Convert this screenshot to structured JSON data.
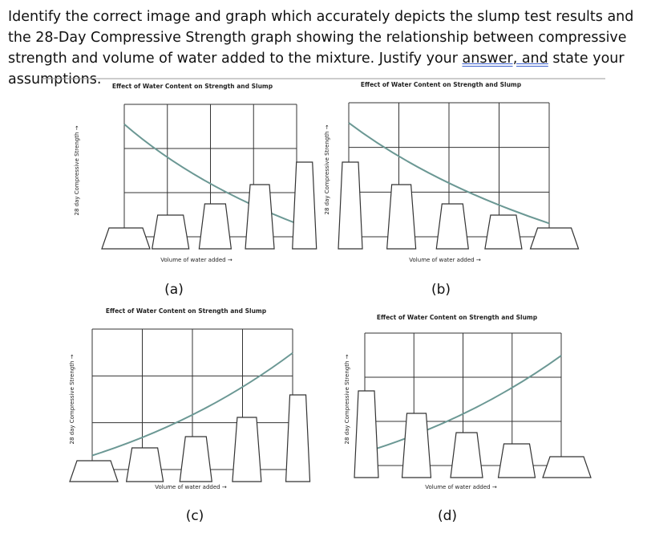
{
  "question": {
    "before": "Identify the correct image and graph which accurately depicts the slump test results and the 28-Day Compressive Strength graph showing the relationship between compressive strength and volume of water added to the mixture. Justify your ",
    "underlined": "answer, and",
    "after": " state your assumptions."
  },
  "panels": [
    {
      "title": "Effect of Water Content on Strength and Slump",
      "y_label": "28 day Compressive Strength →",
      "x_label": "Volume of water added →",
      "caption": "(a)"
    },
    {
      "title": "Effect of Water Content on Strength and Slump",
      "y_label": "28 day Compressive Strength →",
      "x_label": "Volume of water added →",
      "caption": "(b)"
    },
    {
      "title": "Effect of Water Content on Strength and Slump",
      "y_label": "28 day Compressive Strength →",
      "x_label": "Volume of water added →",
      "caption": "(c)"
    },
    {
      "title": "Effect of Water Content on Strength and Slump",
      "y_label": "28 day Compressive Strength →",
      "x_label": "Volume of water added →",
      "caption": "(d)"
    }
  ]
}
